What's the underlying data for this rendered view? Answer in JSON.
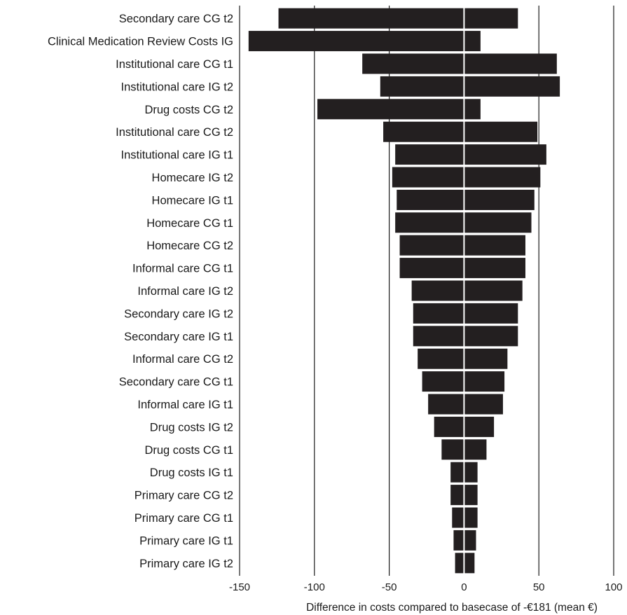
{
  "chart_data": {
    "type": "bar",
    "orientation": "horizontal",
    "chart_subtype": "tornado",
    "title": "",
    "xlabel": "Difference in costs compared to basecase of -€181 (mean €)",
    "ylabel": "",
    "xlim": [
      -150,
      100
    ],
    "xticks": [
      "-150",
      "-100",
      "-50",
      "0",
      "50",
      "100"
    ],
    "xtick_values": [
      -150,
      -100,
      -50,
      0,
      50,
      100
    ],
    "grid": "vertical",
    "legend": "none",
    "bar_color": "#231f20",
    "categories": [
      "Secondary care CG t2",
      "Clinical Medication Review Costs IG",
      "Institutional care CG t1",
      "Institutional care IG t2",
      "Drug costs CG t2",
      "Institutional care CG t2",
      "Institutional care IG t1",
      "Homecare IG t2",
      "Homecare IG t1",
      "Homecare CG t1",
      "Homecare CG t2",
      "Informal care CG t1",
      "Informal care IG t2",
      "Secondary care IG t2",
      "Secondary care IG t1",
      "Informal care CG t2",
      "Secondary care CG t1",
      "Informal care IG t1",
      "Drug costs IG t2",
      "Drug costs CG t1",
      "Drug costs IG t1",
      "Primary care CG t2",
      "Primary care CG t1",
      "Primary care IG t1",
      "Primary care IG t2"
    ],
    "series": [
      {
        "values_low": [
          -124,
          -144,
          -68,
          -56,
          -98,
          -54,
          -46,
          -48,
          -45,
          -46,
          -43,
          -43,
          -35,
          -34,
          -34,
          -31,
          -28,
          -24,
          -20,
          -15,
          -9,
          -9,
          -8,
          -7,
          -6
        ]
      },
      {
        "values_high": [
          36,
          11,
          62,
          64,
          11,
          49,
          55,
          51,
          47,
          45,
          41,
          41,
          39,
          36,
          36,
          29,
          27,
          26,
          20,
          15,
          9,
          9,
          9,
          8,
          7
        ]
      }
    ]
  }
}
